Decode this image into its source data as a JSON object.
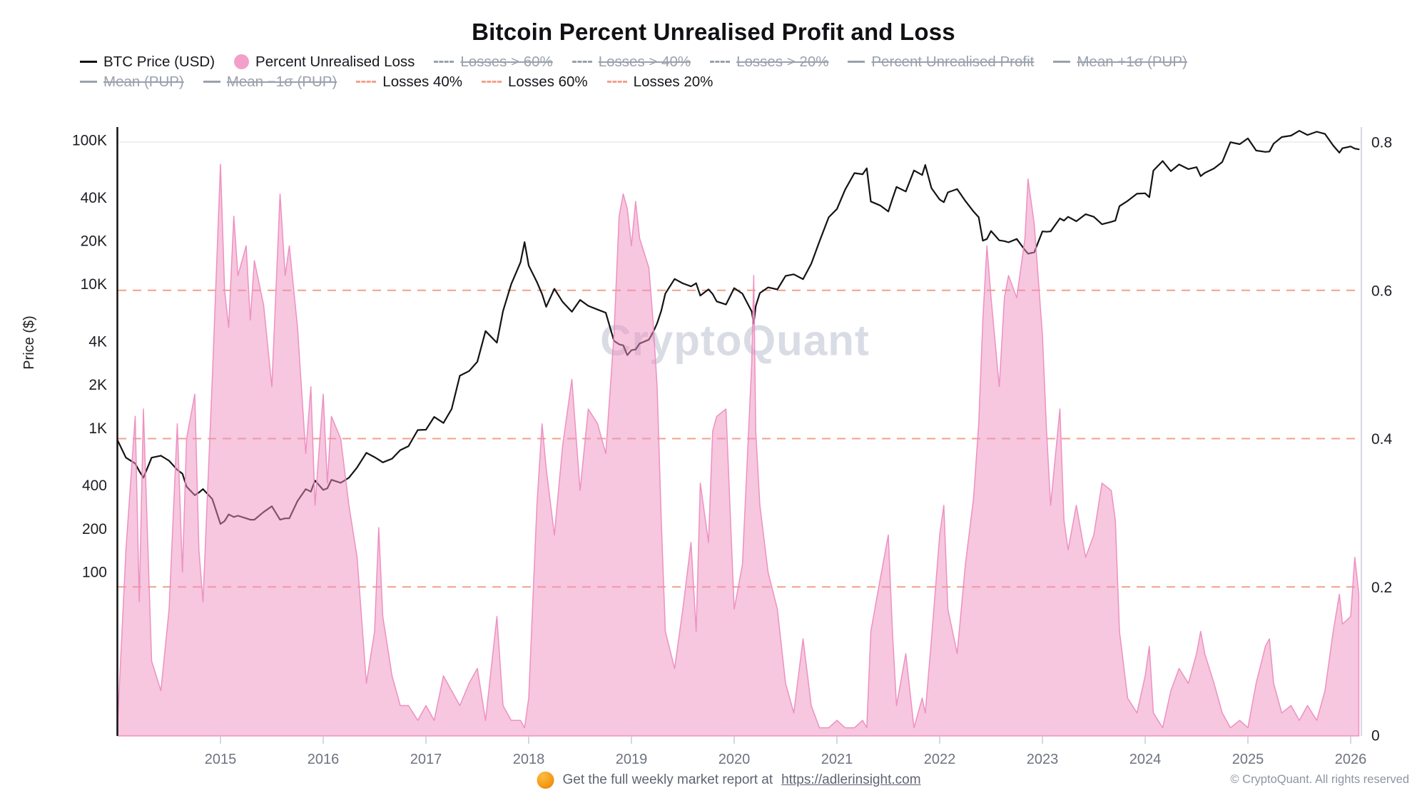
{
  "title": "Bitcoin Percent Unrealised Profit and Loss",
  "watermark": "CryptoQuant",
  "colors": {
    "price_line": "#141414",
    "loss_fill": "rgba(238,143,192,0.5)",
    "loss_stroke": "rgba(237,140,191,0.95)",
    "ref_dash": "#f2a08c",
    "top_gridline": "#ececf2",
    "left_axis": "#111111",
    "right_axis": "#d6d8e2",
    "tick_mark": "#c6cad2",
    "axis_label_dark": "#1c1e24",
    "axis_label_gray": "#6e7380",
    "legend_disabled": "#9aa1ac",
    "legend_dot_pink": "#f39fc9"
  },
  "legend": {
    "rows": [
      [
        {
          "label": "BTC Price (USD)",
          "marker": "line",
          "color": "#111111",
          "struck": false
        },
        {
          "label": "Percent Unrealised Loss",
          "marker": "dot",
          "color": "#f39fc9",
          "struck": false
        },
        {
          "label": "Losses > 60%",
          "marker": "dash",
          "color": "#9aa1ac",
          "struck": true
        },
        {
          "label": "Losses > 40%",
          "marker": "dash",
          "color": "#9aa1ac",
          "struck": true
        },
        {
          "label": "Losses > 20%",
          "marker": "dash",
          "color": "#9aa1ac",
          "struck": true
        },
        {
          "label": "Percent Unrealised Profit",
          "marker": "line",
          "color": "#9aa1ac",
          "struck": true
        },
        {
          "label": "Mean +1σ (PUP)",
          "marker": "line",
          "color": "#9aa1ac",
          "struck": true
        }
      ],
      [
        {
          "label": "Mean (PUP)",
          "marker": "line",
          "color": "#9aa1ac",
          "struck": true
        },
        {
          "label": "Mean −1σ (PUP)",
          "marker": "line",
          "color": "#9aa1ac",
          "struck": true
        },
        {
          "label": "Losses 40%",
          "marker": "dash",
          "color": "#f2a08c",
          "struck": false
        },
        {
          "label": "Losses 60%",
          "marker": "dash",
          "color": "#f2a08c",
          "struck": false
        },
        {
          "label": "Losses 20%",
          "marker": "dash",
          "color": "#f2a08c",
          "struck": false
        }
      ]
    ]
  },
  "footer": {
    "icon": "orange-circle-icon",
    "text": "Get the full weekly market report at",
    "link": "https://adlerinsight.com",
    "copyright": "© CryptoQuant. All rights reserved"
  },
  "chart_data": {
    "type": "line+area",
    "title": "Bitcoin Percent Unrealised Profit and Loss",
    "x_axis": {
      "unit": "decimal_year",
      "ticks": [
        2015,
        2016,
        2017,
        2018,
        2019,
        2020,
        2021,
        2022,
        2023,
        2024,
        2025,
        2026
      ],
      "range": [
        2014.0,
        2026.1
      ],
      "grid": false
    },
    "y_left": {
      "label": "Price ($)",
      "scale": "log",
      "ticks": [
        {
          "value": 100000,
          "label": "100K"
        },
        {
          "value": 40000,
          "label": "40K"
        },
        {
          "value": 20000,
          "label": "20K"
        },
        {
          "value": 10000,
          "label": "10K"
        },
        {
          "value": 4000,
          "label": "4K"
        },
        {
          "value": 2000,
          "label": "2K"
        },
        {
          "value": 1000,
          "label": "1K"
        },
        {
          "value": 400,
          "label": "400"
        },
        {
          "value": 200,
          "label": "200"
        },
        {
          "value": 100,
          "label": "100"
        }
      ]
    },
    "y_right": {
      "label": "",
      "range": [
        0,
        0.8
      ],
      "ticks": [
        {
          "value": 0.8,
          "label": "0.8"
        },
        {
          "value": 0.6,
          "label": "0.6"
        },
        {
          "value": 0.4,
          "label": "0.4"
        },
        {
          "value": 0.2,
          "label": "0.2"
        },
        {
          "value": 0,
          "label": "0"
        }
      ]
    },
    "reference_lines": [
      {
        "value": 0.6,
        "label": "Losses 60%",
        "style": "dashed"
      },
      {
        "value": 0.4,
        "label": "Losses 40%",
        "style": "dashed"
      },
      {
        "value": 0.2,
        "label": "Losses 20%",
        "style": "dashed"
      }
    ],
    "top_gridline_value": 0.8,
    "series": [
      {
        "name": "BTC Price (USD)",
        "type": "line",
        "y_axis": "left",
        "color": "#141414"
      },
      {
        "name": "Percent Unrealised Loss",
        "type": "area",
        "y_axis": "right",
        "color": "#ee8fc0"
      }
    ],
    "point_format": [
      "decimal_year",
      "btc_price_usd",
      "percent_unrealised_loss"
    ],
    "points": [
      [
        2014.0,
        815,
        0.02
      ],
      [
        2014.08,
        620,
        0.25
      ],
      [
        2014.17,
        565,
        0.43
      ],
      [
        2014.21,
        500,
        0.18
      ],
      [
        2014.25,
        450,
        0.44
      ],
      [
        2014.33,
        620,
        0.1
      ],
      [
        2014.42,
        640,
        0.06
      ],
      [
        2014.5,
        590,
        0.17
      ],
      [
        2014.58,
        510,
        0.42
      ],
      [
        2014.63,
        480,
        0.22
      ],
      [
        2014.67,
        390,
        0.4
      ],
      [
        2014.75,
        340,
        0.46
      ],
      [
        2014.79,
        355,
        0.25
      ],
      [
        2014.83,
        375,
        0.18
      ],
      [
        2014.92,
        320,
        0.48
      ],
      [
        2015.0,
        215,
        0.77
      ],
      [
        2015.04,
        225,
        0.6
      ],
      [
        2015.08,
        250,
        0.55
      ],
      [
        2015.13,
        240,
        0.7
      ],
      [
        2015.17,
        245,
        0.62
      ],
      [
        2015.25,
        235,
        0.66
      ],
      [
        2015.29,
        230,
        0.56
      ],
      [
        2015.33,
        230,
        0.64
      ],
      [
        2015.42,
        260,
        0.58
      ],
      [
        2015.5,
        285,
        0.47
      ],
      [
        2015.58,
        230,
        0.73
      ],
      [
        2015.63,
        235,
        0.62
      ],
      [
        2015.67,
        235,
        0.66
      ],
      [
        2015.75,
        310,
        0.55
      ],
      [
        2015.83,
        375,
        0.38
      ],
      [
        2015.88,
        360,
        0.47
      ],
      [
        2015.92,
        430,
        0.31
      ],
      [
        2016.0,
        370,
        0.46
      ],
      [
        2016.04,
        380,
        0.34
      ],
      [
        2016.08,
        435,
        0.43
      ],
      [
        2016.17,
        415,
        0.4
      ],
      [
        2016.25,
        450,
        0.31
      ],
      [
        2016.33,
        530,
        0.24
      ],
      [
        2016.42,
        670,
        0.07
      ],
      [
        2016.5,
        625,
        0.14
      ],
      [
        2016.54,
        600,
        0.28
      ],
      [
        2016.58,
        575,
        0.16
      ],
      [
        2016.67,
        610,
        0.08
      ],
      [
        2016.75,
        700,
        0.04
      ],
      [
        2016.83,
        745,
        0.04
      ],
      [
        2016.92,
        965,
        0.02
      ],
      [
        2017.0,
        970,
        0.04
      ],
      [
        2017.08,
        1190,
        0.02
      ],
      [
        2017.17,
        1080,
        0.08
      ],
      [
        2017.25,
        1350,
        0.06
      ],
      [
        2017.33,
        2300,
        0.04
      ],
      [
        2017.42,
        2480,
        0.07
      ],
      [
        2017.5,
        2875,
        0.09
      ],
      [
        2017.58,
        4700,
        0.02
      ],
      [
        2017.69,
        3900,
        0.16
      ],
      [
        2017.75,
        6470,
        0.04
      ],
      [
        2017.83,
        9950,
        0.02
      ],
      [
        2017.92,
        14100,
        0.02
      ],
      [
        2017.96,
        19500,
        0.01
      ],
      [
        2018.0,
        13400,
        0.05
      ],
      [
        2018.08,
        10300,
        0.31
      ],
      [
        2018.13,
        8500,
        0.42
      ],
      [
        2018.17,
        6930,
        0.36
      ],
      [
        2018.25,
        9240,
        0.27
      ],
      [
        2018.33,
        7500,
        0.39
      ],
      [
        2018.42,
        6400,
        0.48
      ],
      [
        2018.5,
        7730,
        0.33
      ],
      [
        2018.58,
        7030,
        0.44
      ],
      [
        2018.67,
        6630,
        0.42
      ],
      [
        2018.75,
        6300,
        0.38
      ],
      [
        2018.83,
        4020,
        0.54
      ],
      [
        2018.88,
        3800,
        0.7
      ],
      [
        2018.92,
        3740,
        0.73
      ],
      [
        2018.96,
        3200,
        0.71
      ],
      [
        2019.0,
        3460,
        0.66
      ],
      [
        2019.04,
        3500,
        0.72
      ],
      [
        2019.08,
        3850,
        0.67
      ],
      [
        2019.17,
        4100,
        0.63
      ],
      [
        2019.21,
        4600,
        0.56
      ],
      [
        2019.25,
        5320,
        0.47
      ],
      [
        2019.29,
        6500,
        0.29
      ],
      [
        2019.33,
        8560,
        0.14
      ],
      [
        2019.42,
        10820,
        0.09
      ],
      [
        2019.5,
        10080,
        0.17
      ],
      [
        2019.58,
        9600,
        0.26
      ],
      [
        2019.63,
        10100,
        0.14
      ],
      [
        2019.67,
        8290,
        0.34
      ],
      [
        2019.75,
        9150,
        0.26
      ],
      [
        2019.79,
        8500,
        0.41
      ],
      [
        2019.83,
        7550,
        0.43
      ],
      [
        2019.92,
        7190,
        0.44
      ],
      [
        2020.0,
        9350,
        0.17
      ],
      [
        2020.08,
        8550,
        0.23
      ],
      [
        2020.17,
        6440,
        0.5
      ],
      [
        2020.19,
        5300,
        0.62
      ],
      [
        2020.21,
        7000,
        0.41
      ],
      [
        2020.25,
        8630,
        0.31
      ],
      [
        2020.33,
        9450,
        0.22
      ],
      [
        2020.42,
        9140,
        0.17
      ],
      [
        2020.5,
        11350,
        0.07
      ],
      [
        2020.58,
        11650,
        0.03
      ],
      [
        2020.67,
        10780,
        0.13
      ],
      [
        2020.75,
        13800,
        0.04
      ],
      [
        2020.83,
        19700,
        0.01
      ],
      [
        2020.92,
        29000,
        0.01
      ],
      [
        2021.0,
        33100,
        0.02
      ],
      [
        2021.08,
        45140,
        0.01
      ],
      [
        2021.17,
        58780,
        0.01
      ],
      [
        2021.25,
        57750,
        0.02
      ],
      [
        2021.29,
        63500,
        0.01
      ],
      [
        2021.33,
        37330,
        0.14
      ],
      [
        2021.42,
        35040,
        0.21
      ],
      [
        2021.5,
        31800,
        0.27
      ],
      [
        2021.54,
        39000,
        0.14
      ],
      [
        2021.58,
        47130,
        0.04
      ],
      [
        2021.67,
        43790,
        0.11
      ],
      [
        2021.75,
        61320,
        0.01
      ],
      [
        2021.83,
        57000,
        0.05
      ],
      [
        2021.86,
        67000,
        0.03
      ],
      [
        2021.92,
        46220,
        0.13
      ],
      [
        2022.0,
        38480,
        0.27
      ],
      [
        2022.04,
        36900,
        0.31
      ],
      [
        2022.08,
        43190,
        0.17
      ],
      [
        2022.17,
        45540,
        0.11
      ],
      [
        2022.25,
        37650,
        0.23
      ],
      [
        2022.33,
        31790,
        0.32
      ],
      [
        2022.38,
        29000,
        0.42
      ],
      [
        2022.42,
        19940,
        0.56
      ],
      [
        2022.46,
        20500,
        0.66
      ],
      [
        2022.5,
        23300,
        0.59
      ],
      [
        2022.58,
        20050,
        0.47
      ],
      [
        2022.63,
        19800,
        0.59
      ],
      [
        2022.67,
        19430,
        0.62
      ],
      [
        2022.75,
        20490,
        0.59
      ],
      [
        2022.83,
        17170,
        0.67
      ],
      [
        2022.86,
        16200,
        0.75
      ],
      [
        2022.92,
        16550,
        0.69
      ],
      [
        2023.0,
        23130,
        0.54
      ],
      [
        2023.04,
        23000,
        0.41
      ],
      [
        2023.08,
        23140,
        0.31
      ],
      [
        2023.17,
        28480,
        0.44
      ],
      [
        2023.21,
        27500,
        0.29
      ],
      [
        2023.25,
        29250,
        0.25
      ],
      [
        2023.33,
        27220,
        0.31
      ],
      [
        2023.42,
        30480,
        0.24
      ],
      [
        2023.5,
        29230,
        0.27
      ],
      [
        2023.58,
        25940,
        0.34
      ],
      [
        2023.67,
        26970,
        0.33
      ],
      [
        2023.71,
        27500,
        0.29
      ],
      [
        2023.75,
        34660,
        0.14
      ],
      [
        2023.83,
        37720,
        0.05
      ],
      [
        2023.92,
        42260,
        0.03
      ],
      [
        2024.0,
        42580,
        0.08
      ],
      [
        2024.04,
        40000,
        0.12
      ],
      [
        2024.08,
        61170,
        0.03
      ],
      [
        2024.17,
        71330,
        0.01
      ],
      [
        2024.25,
        60640,
        0.06
      ],
      [
        2024.33,
        67500,
        0.09
      ],
      [
        2024.42,
        62680,
        0.07
      ],
      [
        2024.5,
        64620,
        0.11
      ],
      [
        2024.54,
        56000,
        0.14
      ],
      [
        2024.58,
        58970,
        0.11
      ],
      [
        2024.67,
        63330,
        0.07
      ],
      [
        2024.75,
        70220,
        0.03
      ],
      [
        2024.83,
        96450,
        0.01
      ],
      [
        2024.92,
        93430,
        0.02
      ],
      [
        2025.0,
        102400,
        0.01
      ],
      [
        2025.08,
        84350,
        0.07
      ],
      [
        2025.17,
        82550,
        0.12
      ],
      [
        2025.21,
        83000,
        0.13
      ],
      [
        2025.25,
        94180,
        0.07
      ],
      [
        2025.33,
        104640,
        0.03
      ],
      [
        2025.42,
        107140,
        0.04
      ],
      [
        2025.5,
        115760,
        0.02
      ],
      [
        2025.58,
        108240,
        0.04
      ],
      [
        2025.67,
        114060,
        0.02
      ],
      [
        2025.75,
        110100,
        0.06
      ],
      [
        2025.83,
        91400,
        0.14
      ],
      [
        2025.89,
        81500,
        0.19
      ],
      [
        2025.92,
        87500,
        0.15
      ],
      [
        2026.0,
        90000,
        0.16
      ],
      [
        2026.04,
        87000,
        0.24
      ],
      [
        2026.08,
        86000,
        0.19
      ]
    ]
  }
}
